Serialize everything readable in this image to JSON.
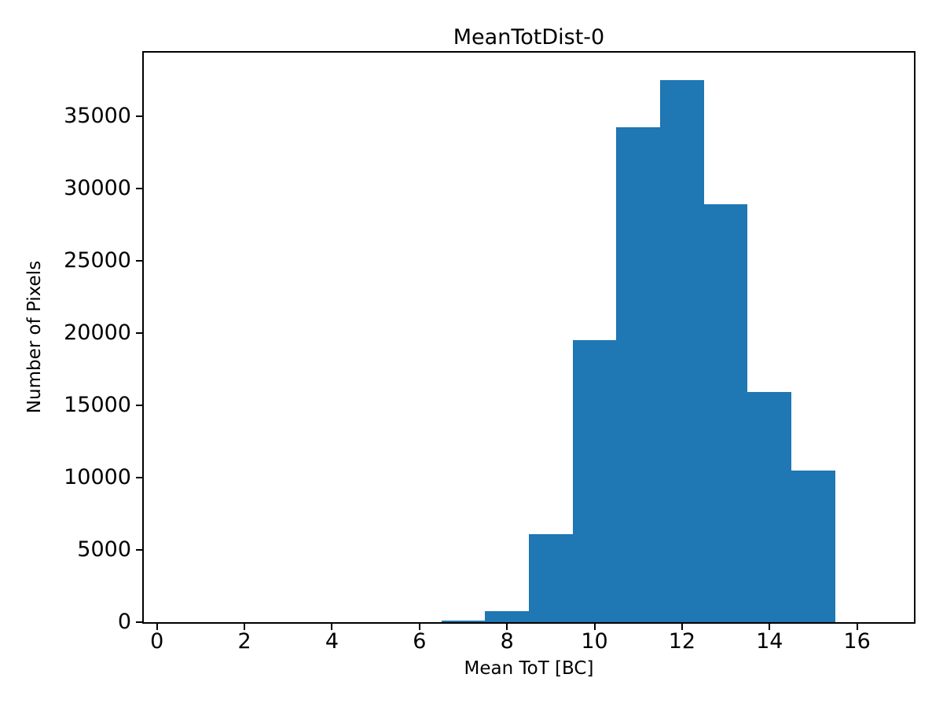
{
  "figure": {
    "background_color": "#ffffff"
  },
  "chart_data": {
    "type": "bar",
    "subtype": "histogram",
    "title": "MeanTotDist-0",
    "xlabel": "Mean ToT [BC]",
    "ylabel": "Number of Pixels",
    "bar_color": "#1f77b4",
    "axis_color": "#000000",
    "grid": false,
    "legend_position": "none",
    "bin_width": 1.0,
    "bin_left_edges": [
      0.5,
      1.5,
      2.5,
      3.5,
      4.5,
      5.5,
      6.5,
      7.5,
      8.5,
      9.5,
      10.5,
      11.5,
      12.5,
      13.5,
      14.5,
      15.5
    ],
    "counts": [
      0,
      0,
      0,
      0,
      0,
      0,
      100,
      750,
      6100,
      19500,
      34200,
      37500,
      28900,
      15900,
      10500,
      0
    ],
    "xlim": [
      -0.3,
      17.3
    ],
    "ylim": [
      0,
      39375
    ],
    "xticks": [
      0,
      2,
      4,
      6,
      8,
      10,
      12,
      14,
      16
    ],
    "yticks": [
      0,
      5000,
      10000,
      15000,
      20000,
      25000,
      30000,
      35000
    ]
  }
}
